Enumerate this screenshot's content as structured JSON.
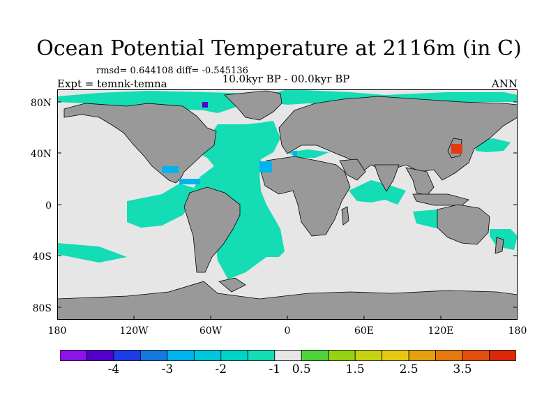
{
  "title": "Ocean Potential Temperature at 2116m (in C)",
  "stats": "rmsd= 0.644108 diff= -0.545136",
  "experiment": "Expt = temnk-temna",
  "period": "10.0kyr BP - 00.0kyr BP",
  "season": "ANN",
  "map": {
    "lat_ticks": [
      "80N",
      "40N",
      "0",
      "40S",
      "80S"
    ],
    "lon_ticks": [
      "180",
      "120W",
      "60W",
      "0",
      "60E",
      "120E",
      "180"
    ],
    "colors": {
      "land": "#999999",
      "near_zero": "#e6e6e6",
      "ocean_cooling": "#14dcb4",
      "moderate_cooling": "#00b4f0",
      "strong_cooling": "#5000c8",
      "warming": "#e13c0f"
    }
  },
  "colorbar": {
    "colors": [
      "#8c14e6",
      "#5000c8",
      "#1e3ce6",
      "#1478dc",
      "#00b4f0",
      "#00c8dc",
      "#00d2c8",
      "#14dcb4",
      "#e6e6e6",
      "#50d23c",
      "#96d214",
      "#c8d214",
      "#e6c814",
      "#e6a00f",
      "#e6780f",
      "#e1500f",
      "#dc280a"
    ],
    "labels": [
      "-4",
      "-3",
      "-2",
      "-1",
      "0.5",
      "1.5",
      "2.5",
      "3.5"
    ]
  }
}
